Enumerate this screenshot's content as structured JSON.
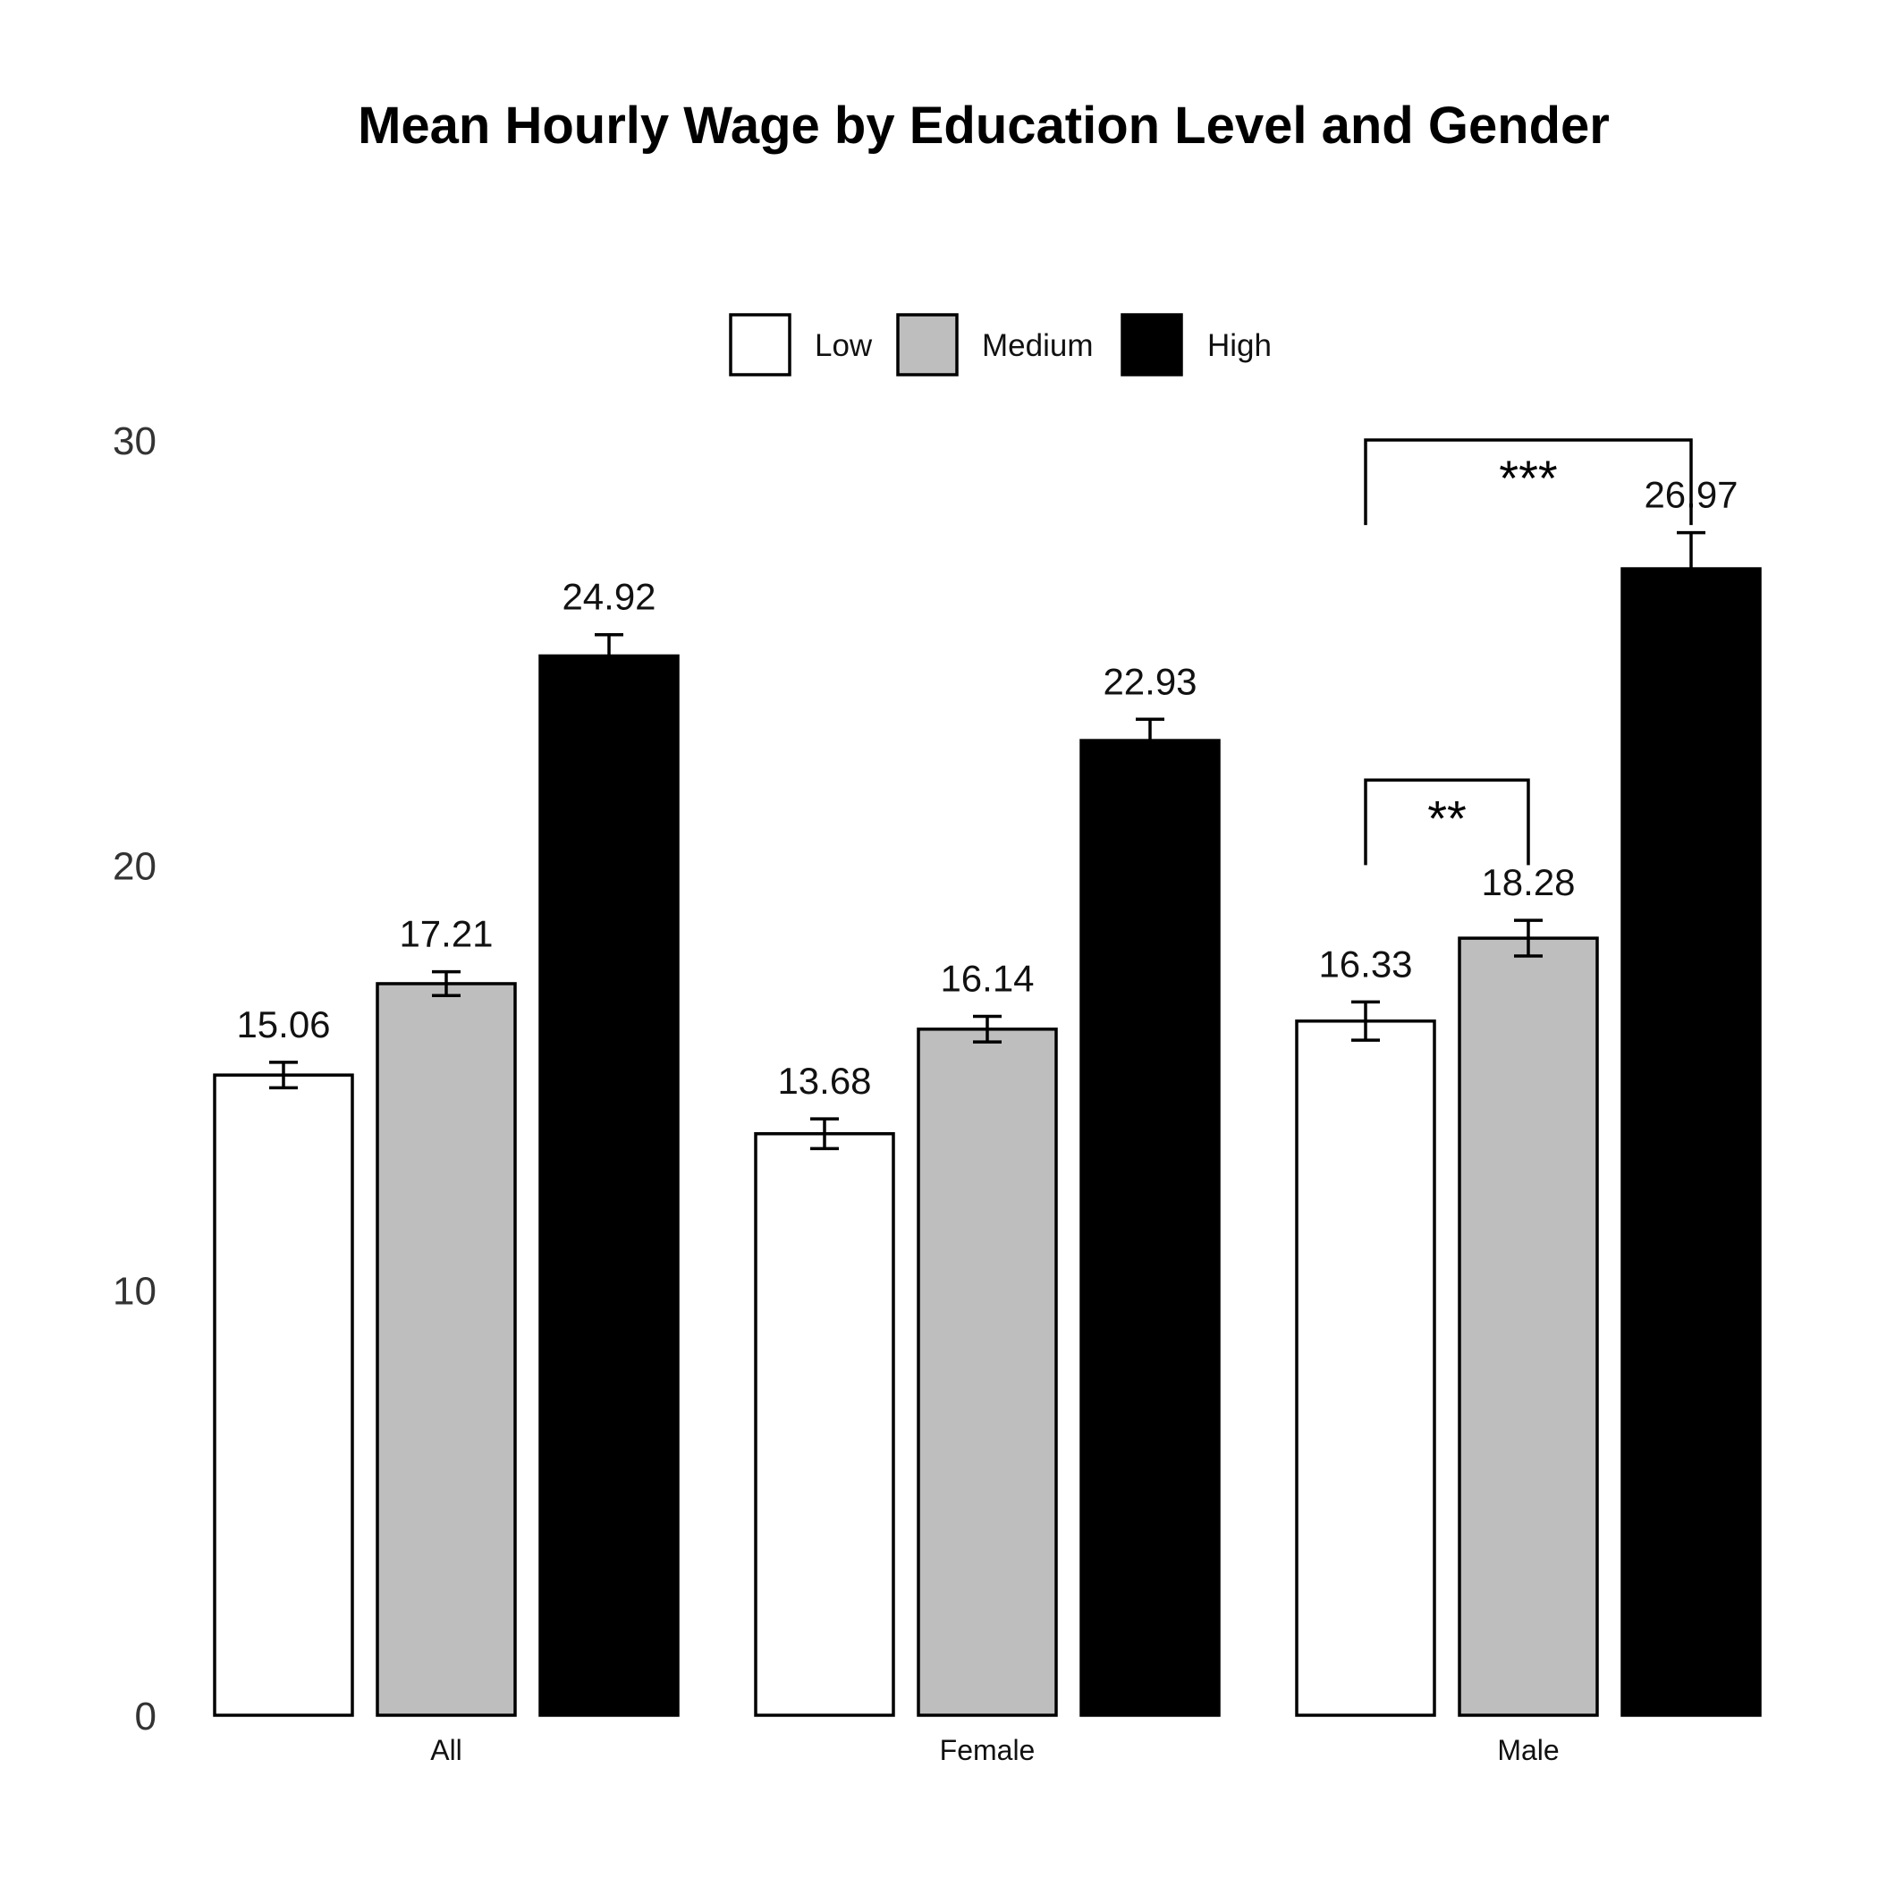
{
  "chart_data": {
    "type": "bar",
    "title": "Mean Hourly Wage by Education Level and Gender",
    "xlabel": "",
    "ylabel": "",
    "ylim": [
      0,
      30
    ],
    "yticks": [
      0,
      10,
      20,
      30
    ],
    "grid": false,
    "legend_position": "top-center",
    "categories": [
      "All",
      "Female",
      "Male"
    ],
    "series": [
      {
        "name": "Low",
        "color": "#ffffff",
        "values": [
          15.06,
          13.68,
          16.33
        ],
        "error": [
          0.3,
          0.35,
          0.45
        ],
        "labels": [
          "15.06",
          "13.68",
          "16.33"
        ]
      },
      {
        "name": "Medium",
        "color": "#bebebe",
        "values": [
          17.21,
          16.14,
          18.28
        ],
        "error": [
          0.28,
          0.3,
          0.42
        ],
        "labels": [
          "17.21",
          "16.14",
          "18.28"
        ]
      },
      {
        "name": "High",
        "color": "#000000",
        "values": [
          24.92,
          22.93,
          26.97
        ],
        "error": [
          0.5,
          0.5,
          0.85
        ],
        "labels": [
          "24.92",
          "22.93",
          "26.97"
        ]
      }
    ],
    "annotations": [
      {
        "category": "Male",
        "from_series": "Low",
        "to_series": "Medium",
        "y_bracket": 22.0,
        "y_leg_bottom": 20.0,
        "text": "**"
      },
      {
        "category": "Male",
        "from_series": "Low",
        "to_series": "High",
        "y_bracket": 30.0,
        "y_leg_bottom": 28.0,
        "text": "***"
      }
    ]
  }
}
